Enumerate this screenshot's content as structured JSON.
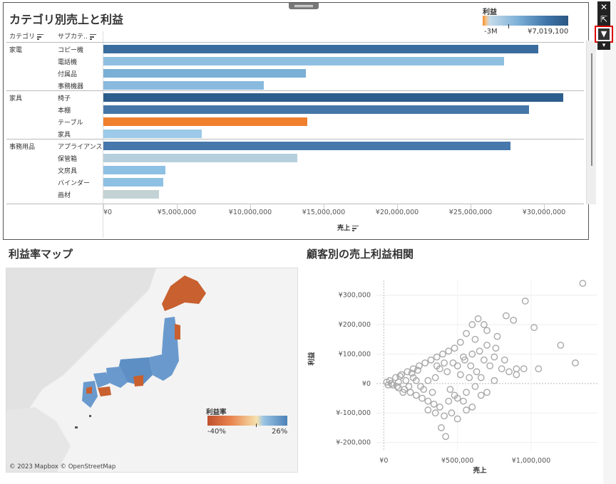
{
  "sales_profit_by_category": {
    "title": "カテゴリ別売上と利益",
    "category_header": "カテゴリ",
    "subcategory_header": "サブカテ..",
    "legend": {
      "title": "利益",
      "min": "-3M",
      "max": "¥7,019,100"
    },
    "rows": [
      {
        "category": "家電",
        "subcategory": "コピー機",
        "sales": 29600000,
        "color": "#3a6d9e"
      },
      {
        "category": "",
        "subcategory": "電話機",
        "sales": 27300000,
        "color": "#8fbfe0"
      },
      {
        "category": "",
        "subcategory": "付属品",
        "sales": 13800000,
        "color": "#7aafd6"
      },
      {
        "category": "",
        "subcategory": "事務機器",
        "sales": 10900000,
        "color": "#89bade"
      },
      {
        "category": "家具",
        "subcategory": "椅子",
        "sales": 31300000,
        "color": "#2d5d8c"
      },
      {
        "category": "",
        "subcategory": "本棚",
        "sales": 29000000,
        "color": "#4576a8"
      },
      {
        "category": "",
        "subcategory": "テーブル",
        "sales": 13900000,
        "color": "#f0802d"
      },
      {
        "category": "",
        "subcategory": "家具",
        "sales": 6700000,
        "color": "#9ccae8"
      },
      {
        "category": "事務用品",
        "subcategory": "アプライアンス",
        "sales": 27700000,
        "color": "#4678ac"
      },
      {
        "category": "",
        "subcategory": "保管箱",
        "sales": 13200000,
        "color": "#b6cfdc"
      },
      {
        "category": "",
        "subcategory": "文房具",
        "sales": 4200000,
        "color": "#8ec0e3"
      },
      {
        "category": "",
        "subcategory": "バインダー",
        "sales": 4100000,
        "color": "#8ec0e3"
      },
      {
        "category": "",
        "subcategory": "画材",
        "sales": 3800000,
        "color": "#c3d2d4"
      }
    ],
    "x_ticks": [
      "¥0",
      "¥5,000,000",
      "¥10,000,000",
      "¥15,000,000",
      "¥20,000,000",
      "¥25,000,000",
      "¥30,000,000"
    ],
    "x_label": "売上"
  },
  "profit_map": {
    "title": "利益率マップ",
    "legend": {
      "title": "利益率",
      "min": "-40%",
      "max": "26%"
    },
    "copyright": "© 2023 Mapbox © OpenStreetMap"
  },
  "scatter": {
    "title": "顧客別の売上利益相関",
    "x_label": "売上",
    "y_label": "利益",
    "y_ticks": [
      "¥300,000",
      "¥200,000",
      "¥100,000",
      "¥0",
      "¥-100,000",
      "¥-200,000"
    ],
    "x_ticks": [
      "¥0",
      "¥500,000",
      "¥1,000,000"
    ]
  },
  "toolbar": {
    "close": "✕",
    "popout": "⇱",
    "filter": "▼",
    "more": "▾"
  },
  "colors": {
    "orange": "#f28e2c",
    "blue": "#2a5783"
  },
  "chart_data": [
    {
      "type": "bar",
      "title": "カテゴリ別売上と利益",
      "categories": [
        "コピー機",
        "電話機",
        "付属品",
        "事務機器",
        "椅子",
        "本棚",
        "テーブル",
        "家具",
        "アプライアンス",
        "保管箱",
        "文房具",
        "バインダー",
        "画材"
      ],
      "values": [
        29600000,
        27300000,
        13800000,
        10900000,
        31300000,
        29000000,
        13900000,
        6700000,
        27700000,
        13200000,
        4200000,
        4100000,
        3800000
      ],
      "xlabel": "売上",
      "xlim": [
        0,
        32500000
      ],
      "legend": "top-right"
    },
    {
      "type": "scatter",
      "title": "顧客別の売上利益相関",
      "xlabel": "売上",
      "ylabel": "利益",
      "xlim": [
        -50000,
        1450000
      ],
      "ylim": [
        -230000,
        350000
      ],
      "points": [
        [
          1350000,
          340000
        ],
        [
          960000,
          280000
        ],
        [
          1200000,
          130000
        ],
        [
          1300000,
          70000
        ],
        [
          1020000,
          190000
        ],
        [
          880000,
          215000
        ],
        [
          830000,
          230000
        ],
        [
          770000,
          160000
        ],
        [
          680000,
          200000
        ],
        [
          640000,
          220000
        ],
        [
          600000,
          200000
        ],
        [
          560000,
          170000
        ],
        [
          520000,
          140000
        ],
        [
          480000,
          120000
        ],
        [
          440000,
          110000
        ],
        [
          400000,
          100000
        ],
        [
          360000,
          90000
        ],
        [
          320000,
          80000
        ],
        [
          280000,
          70000
        ],
        [
          240000,
          60000
        ],
        [
          200000,
          50000
        ],
        [
          160000,
          40000
        ],
        [
          120000,
          30000
        ],
        [
          80000,
          20000
        ],
        [
          40000,
          10000
        ],
        [
          20000,
          5000
        ],
        [
          60000,
          -5000
        ],
        [
          100000,
          -15000
        ],
        [
          140000,
          -20000
        ],
        [
          180000,
          -30000
        ],
        [
          220000,
          -40000
        ],
        [
          260000,
          -50000
        ],
        [
          300000,
          -60000
        ],
        [
          340000,
          -70000
        ],
        [
          380000,
          -80000
        ],
        [
          410000,
          -110000
        ],
        [
          390000,
          -150000
        ],
        [
          420000,
          -180000
        ],
        [
          350000,
          -100000
        ],
        [
          300000,
          -90000
        ],
        [
          500000,
          60000
        ],
        [
          550000,
          80000
        ],
        [
          600000,
          100000
        ],
        [
          650000,
          110000
        ],
        [
          700000,
          130000
        ],
        [
          750000,
          90000
        ],
        [
          800000,
          50000
        ],
        [
          850000,
          40000
        ],
        [
          900000,
          30000
        ],
        [
          720000,
          60000
        ],
        [
          580000,
          20000
        ],
        [
          620000,
          -10000
        ],
        [
          660000,
          -40000
        ],
        [
          700000,
          -30000
        ],
        [
          750000,
          10000
        ],
        [
          450000,
          -20000
        ],
        [
          500000,
          -50000
        ],
        [
          520000,
          30000
        ],
        [
          470000,
          70000
        ],
        [
          430000,
          40000
        ],
        [
          350000,
          20000
        ],
        [
          300000,
          10000
        ],
        [
          250000,
          -10000
        ],
        [
          200000,
          20000
        ],
        [
          150000,
          10000
        ],
        [
          100000,
          5000
        ],
        [
          50000,
          0
        ],
        [
          130000,
          -30000
        ],
        [
          270000,
          -20000
        ],
        [
          330000,
          -30000
        ],
        [
          380000,
          50000
        ],
        [
          410000,
          70000
        ],
        [
          360000,
          60000
        ],
        [
          540000,
          90000
        ],
        [
          590000,
          60000
        ],
        [
          630000,
          40000
        ],
        [
          680000,
          80000
        ],
        [
          560000,
          -30000
        ],
        [
          480000,
          -40000
        ],
        [
          620000,
          150000
        ],
        [
          700000,
          180000
        ],
        [
          760000,
          120000
        ],
        [
          820000,
          80000
        ],
        [
          900000,
          50000
        ],
        [
          950000,
          50000
        ],
        [
          1050000,
          50000
        ],
        [
          660000,
          20000
        ],
        [
          600000,
          -80000
        ],
        [
          540000,
          -60000
        ],
        [
          460000,
          -100000
        ],
        [
          500000,
          -120000
        ],
        [
          560000,
          -90000
        ],
        [
          440000,
          -60000
        ],
        [
          220000,
          10000
        ],
        [
          170000,
          -10000
        ],
        [
          90000,
          -10000
        ],
        [
          30000,
          -5000
        ],
        [
          110000,
          25000
        ],
        [
          190000,
          35000
        ],
        [
          230000,
          45000
        ]
      ]
    }
  ]
}
